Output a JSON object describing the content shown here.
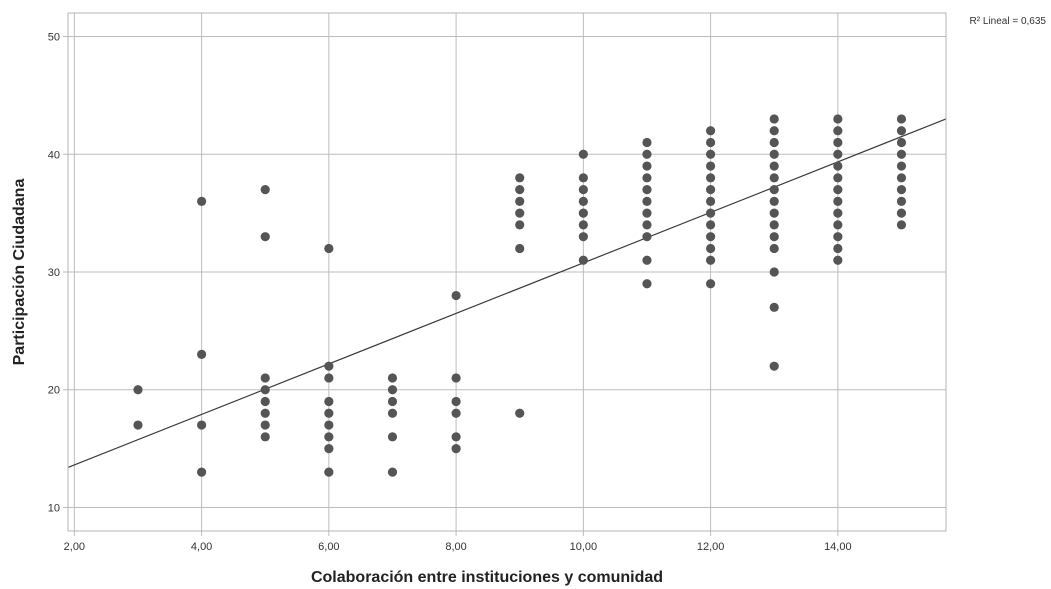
{
  "chart_data": {
    "type": "scatter",
    "xlabel": "Colaboración entre instituciones y comunidad",
    "ylabel": "Participación Ciudadana",
    "xlim": [
      1.9,
      15.7
    ],
    "ylim": [
      8,
      52
    ],
    "x_ticks": [
      2,
      4,
      6,
      8,
      10,
      12,
      14
    ],
    "x_tick_labels": [
      "2,00",
      "4,00",
      "6,00",
      "8,00",
      "10,00",
      "12,00",
      "14,00"
    ],
    "y_ticks": [
      10,
      20,
      30,
      40,
      50
    ],
    "y_tick_labels": [
      "10",
      "20",
      "30",
      "40",
      "50"
    ],
    "grid": true,
    "fit_line": {
      "type": "linear",
      "label": "R² Lineal = 0,635",
      "points": [
        [
          1.9,
          13.4
        ],
        [
          15.7,
          43.0
        ]
      ]
    },
    "points": [
      [
        3,
        20
      ],
      [
        3,
        17
      ],
      [
        4,
        36
      ],
      [
        4,
        23
      ],
      [
        4,
        17
      ],
      [
        4,
        13
      ],
      [
        5,
        37
      ],
      [
        5,
        33
      ],
      [
        5,
        21
      ],
      [
        5,
        20
      ],
      [
        5,
        19
      ],
      [
        5,
        18
      ],
      [
        5,
        17
      ],
      [
        5,
        16
      ],
      [
        6,
        32
      ],
      [
        6,
        22
      ],
      [
        6,
        21
      ],
      [
        6,
        19
      ],
      [
        6,
        18
      ],
      [
        6,
        17
      ],
      [
        6,
        16
      ],
      [
        6,
        15
      ],
      [
        6,
        13
      ],
      [
        7,
        21
      ],
      [
        7,
        20
      ],
      [
        7,
        19
      ],
      [
        7,
        18
      ],
      [
        7,
        16
      ],
      [
        7,
        13
      ],
      [
        8,
        28
      ],
      [
        8,
        21
      ],
      [
        8,
        19
      ],
      [
        8,
        18
      ],
      [
        8,
        16
      ],
      [
        8,
        15
      ],
      [
        9,
        38
      ],
      [
        9,
        37
      ],
      [
        9,
        36
      ],
      [
        9,
        35
      ],
      [
        9,
        34
      ],
      [
        9,
        32
      ],
      [
        9,
        18
      ],
      [
        10,
        40
      ],
      [
        10,
        38
      ],
      [
        10,
        37
      ],
      [
        10,
        36
      ],
      [
        10,
        35
      ],
      [
        10,
        34
      ],
      [
        10,
        33
      ],
      [
        10,
        31
      ],
      [
        11,
        41
      ],
      [
        11,
        40
      ],
      [
        11,
        39
      ],
      [
        11,
        38
      ],
      [
        11,
        37
      ],
      [
        11,
        36
      ],
      [
        11,
        35
      ],
      [
        11,
        34
      ],
      [
        11,
        33
      ],
      [
        11,
        31
      ],
      [
        11,
        29
      ],
      [
        12,
        42
      ],
      [
        12,
        41
      ],
      [
        12,
        40
      ],
      [
        12,
        39
      ],
      [
        12,
        38
      ],
      [
        12,
        37
      ],
      [
        12,
        36
      ],
      [
        12,
        35
      ],
      [
        12,
        34
      ],
      [
        12,
        33
      ],
      [
        12,
        32
      ],
      [
        12,
        31
      ],
      [
        12,
        29
      ],
      [
        13,
        43
      ],
      [
        13,
        42
      ],
      [
        13,
        41
      ],
      [
        13,
        40
      ],
      [
        13,
        39
      ],
      [
        13,
        38
      ],
      [
        13,
        37
      ],
      [
        13,
        36
      ],
      [
        13,
        35
      ],
      [
        13,
        34
      ],
      [
        13,
        33
      ],
      [
        13,
        32
      ],
      [
        13,
        30
      ],
      [
        13,
        27
      ],
      [
        13,
        22
      ],
      [
        14,
        43
      ],
      [
        14,
        42
      ],
      [
        14,
        41
      ],
      [
        14,
        40
      ],
      [
        14,
        39
      ],
      [
        14,
        38
      ],
      [
        14,
        37
      ],
      [
        14,
        36
      ],
      [
        14,
        35
      ],
      [
        14,
        34
      ],
      [
        14,
        33
      ],
      [
        14,
        32
      ],
      [
        14,
        31
      ],
      [
        15,
        43
      ],
      [
        15,
        42
      ],
      [
        15,
        41
      ],
      [
        15,
        40
      ],
      [
        15,
        39
      ],
      [
        15,
        38
      ],
      [
        15,
        37
      ],
      [
        15,
        36
      ],
      [
        15,
        35
      ],
      [
        15,
        34
      ]
    ],
    "colors": {
      "point": "#555555",
      "line": "#3a3a3a",
      "grid": "#bdbdbd"
    }
  }
}
